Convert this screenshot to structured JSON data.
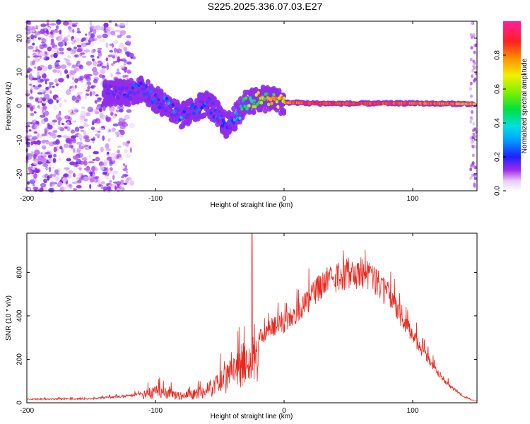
{
  "title": "S225.2025.336.07.03.E27",
  "chart_data": [
    {
      "type": "heatmap",
      "name": "spectrogram",
      "xlabel": "Height of straight line (km)",
      "ylabel": "Frequency (Hz)",
      "xlim": [
        -200,
        150
      ],
      "ylim": [
        -25,
        25
      ],
      "xticks": [
        "-200",
        "-100",
        "0",
        "100"
      ],
      "xtick_values": [
        -200,
        -100,
        0,
        100
      ],
      "yticks": [
        "-20",
        "-10",
        "0",
        "10",
        "20"
      ],
      "ytick_values": [
        -20,
        -10,
        0,
        10,
        20
      ],
      "colorbar": {
        "label": "Normalized spectral amplitude",
        "range": [
          0,
          1
        ],
        "ticks": [
          "0.0",
          "0.2",
          "0.4",
          "0.6",
          "0.8"
        ],
        "tick_values": [
          0.0,
          0.2,
          0.4,
          0.6,
          0.8
        ]
      },
      "ridge": {
        "heights_km": [
          -140,
          -120,
          -110,
          -100,
          -90,
          -80,
          -70,
          -60,
          -50,
          -45,
          -40,
          -35,
          -30,
          -20,
          -10,
          0,
          10,
          20,
          50,
          80,
          100,
          120,
          145
        ],
        "freq_hz": [
          4,
          4,
          5,
          2,
          0,
          -3,
          -1,
          1,
          -3,
          -6,
          -4,
          -2,
          1,
          2,
          2,
          1,
          1,
          0.8,
          0.7,
          0.8,
          0.8,
          0.7,
          0.6
        ],
        "amplitude": [
          0.2,
          0.25,
          0.3,
          0.35,
          0.4,
          0.35,
          0.3,
          0.3,
          0.3,
          0.25,
          0.3,
          0.45,
          0.6,
          0.75,
          0.8,
          0.85,
          0.9,
          0.95,
          0.95,
          0.95,
          0.9,
          0.9,
          0.85
        ]
      }
    },
    {
      "type": "line",
      "name": "snr",
      "xlabel": "Height of straight line (km)",
      "ylabel": "SNR (10 * v/v)",
      "xlim": [
        -200,
        150
      ],
      "ylim": [
        0,
        780
      ],
      "xticks": [
        "-200",
        "-100",
        "0",
        "100"
      ],
      "xtick_values": [
        -200,
        -100,
        0,
        100
      ],
      "yticks": [
        "0",
        "200",
        "400",
        "600"
      ],
      "ytick_values": [
        0,
        200,
        400,
        600
      ],
      "color": "#e8291f",
      "envelope_x": [
        -200,
        -150,
        -120,
        -105,
        -100,
        -90,
        -80,
        -70,
        -60,
        -50,
        -40,
        -30,
        -20,
        -10,
        0,
        10,
        20,
        30,
        40,
        50,
        60,
        70,
        80,
        90,
        100,
        110,
        120,
        130,
        140,
        148
      ],
      "envelope_y": [
        20,
        22,
        40,
        60,
        80,
        70,
        50,
        60,
        90,
        140,
        210,
        300,
        330,
        390,
        410,
        470,
        540,
        610,
        650,
        670,
        670,
        640,
        560,
        460,
        350,
        240,
        150,
        80,
        30,
        10
      ],
      "spike": {
        "x": -25,
        "y": 780
      }
    }
  ]
}
